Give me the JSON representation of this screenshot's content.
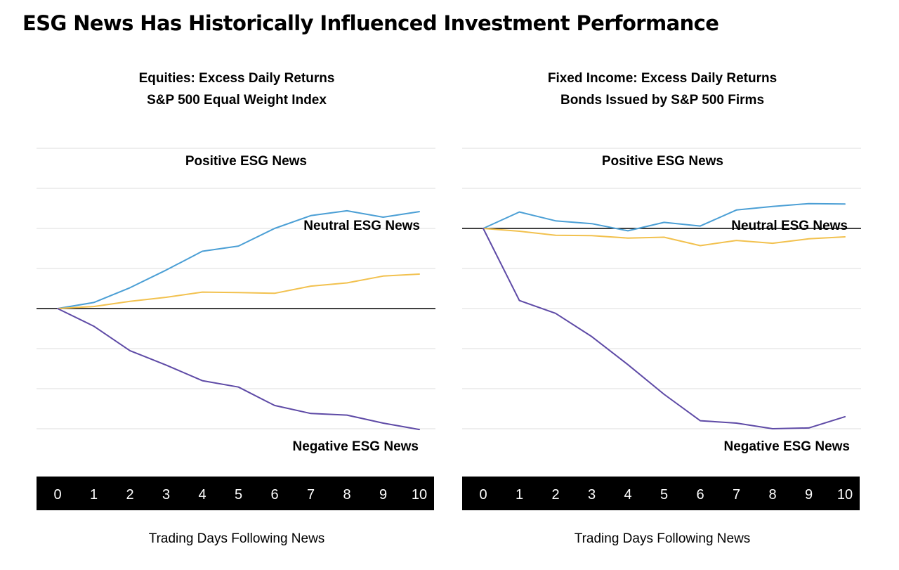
{
  "title": "ESG News Has Historically Influenced Investment Performance",
  "colors": {
    "positive": "#4b9fd5",
    "neutral": "#f2c14e",
    "negative": "#5e4aa6",
    "grid": "#dddddd",
    "baseline": "#000000",
    "axis_bar": "#000000"
  },
  "chart_data": [
    {
      "type": "line",
      "title": "Equities: Excess Daily Returns",
      "subtitle": "S&P 500 Equal Weight Index",
      "xlabel": "Trading Days Following News",
      "ylabel": "",
      "x": [
        0,
        1,
        2,
        3,
        4,
        5,
        6,
        7,
        8,
        9,
        10
      ],
      "xticks": [
        "0",
        "1",
        "2",
        "3",
        "4",
        "5",
        "6",
        "7",
        "8",
        "9",
        "10"
      ],
      "ylim": [
        -3,
        3
      ],
      "grid": true,
      "series": [
        {
          "name": "Positive ESG News",
          "color": "#4b9fd5",
          "values": [
            0,
            0.15,
            0.52,
            0.96,
            1.43,
            1.56,
            2.0,
            2.32,
            2.44,
            2.28,
            2.42
          ]
        },
        {
          "name": "Neutral ESG News",
          "color": "#f2c14e",
          "values": [
            0,
            0.05,
            0.18,
            0.28,
            0.41,
            0.4,
            0.38,
            0.56,
            0.64,
            0.81,
            0.86
          ]
        },
        {
          "name": "Negative ESG News",
          "color": "#5e4aa6",
          "values": [
            0,
            -0.44,
            -1.05,
            -1.41,
            -1.8,
            -1.96,
            -2.42,
            -2.62,
            -2.66,
            -2.86,
            -3.02
          ]
        }
      ]
    },
    {
      "type": "line",
      "title": "Fixed Income: Excess Daily Returns",
      "subtitle": "Bonds Issued by S&P 500 Firms",
      "xlabel": "Trading Days Following News",
      "ylabel": "",
      "x": [
        0,
        1,
        2,
        3,
        4,
        5,
        6,
        7,
        8,
        9,
        10
      ],
      "xticks": [
        "0",
        "1",
        "2",
        "3",
        "4",
        "5",
        "6",
        "7",
        "8",
        "9",
        "10"
      ],
      "ylim": [
        -5,
        1
      ],
      "grid": true,
      "series": [
        {
          "name": "Positive ESG News",
          "color": "#4b9fd5",
          "values": [
            0,
            0.41,
            0.19,
            0.12,
            -0.06,
            0.15,
            0.06,
            0.46,
            0.55,
            0.62,
            0.61
          ]
        },
        {
          "name": "Neutral ESG News",
          "color": "#f2c14e",
          "values": [
            0,
            -0.07,
            -0.17,
            -0.18,
            -0.24,
            -0.22,
            -0.43,
            -0.3,
            -0.37,
            -0.26,
            -0.21
          ]
        },
        {
          "name": "Negative ESG News",
          "color": "#5e4aa6",
          "values": [
            0,
            -1.8,
            -2.12,
            -2.7,
            -3.4,
            -4.14,
            -4.8,
            -4.86,
            -5.0,
            -4.98,
            -4.7
          ]
        }
      ]
    }
  ]
}
